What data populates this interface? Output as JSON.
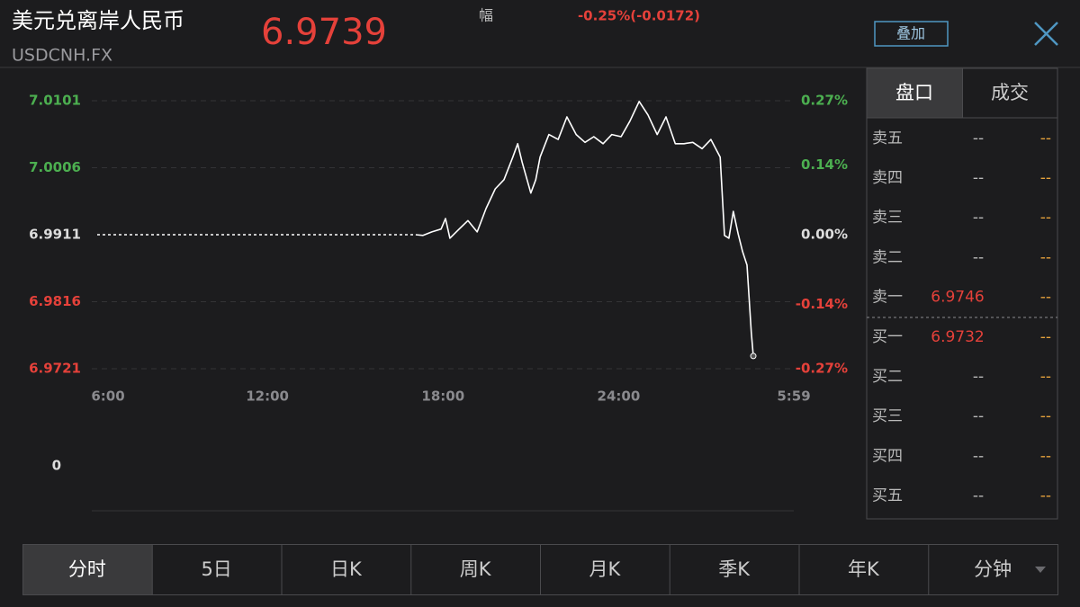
{
  "header": {
    "title": "美元兑离岸人民币",
    "code": "USDCNH.FX",
    "price": "6.9739",
    "change_label": "幅",
    "change": "-0.25%(-0.0172)",
    "overlay_button": "叠加"
  },
  "chart_data": {
    "type": "line",
    "x": [
      664,
      679,
      697,
      716,
      725,
      734,
      753,
      771,
      790,
      808,
      827,
      845,
      863,
      873,
      882,
      900,
      910,
      919,
      937,
      956,
      974,
      993,
      1011,
      1029,
      1048,
      1066,
      1085,
      1103,
      1122,
      1140,
      1159,
      1177,
      1196,
      1214,
      1232,
      1251,
      1269,
      1288,
      1297,
      1306,
      1315,
      1325,
      1334,
      1343,
      1352,
      1356
    ],
    "series": [
      {
        "color": "#ffffff",
        "values": [
          6.9911,
          6.991,
          6.9915,
          6.9919,
          6.9934,
          6.9906,
          6.9919,
          6.9931,
          6.9915,
          6.9948,
          6.9976,
          6.9989,
          7.0021,
          7.004,
          7.0014,
          6.997,
          6.9989,
          7.0021,
          7.0053,
          7.0046,
          7.0078,
          7.0053,
          7.0042,
          7.005,
          7.004,
          7.0053,
          7.005,
          7.0072,
          7.01,
          7.0081,
          7.0053,
          7.0078,
          7.004,
          7.004,
          7.0042,
          7.0033,
          7.0046,
          7.0021,
          6.991,
          6.9906,
          6.9944,
          6.9912,
          6.9887,
          6.9868,
          6.9772,
          6.9739
        ]
      }
    ],
    "xlim": [
      0,
      1439
    ],
    "xticks": [
      {
        "value": 0,
        "label": "6:00"
      },
      {
        "value": 360,
        "label": "12:00"
      },
      {
        "value": 720,
        "label": "18:00"
      },
      {
        "value": 1080,
        "label": "24:00"
      },
      {
        "value": 1439,
        "label": "5:59"
      }
    ],
    "ylim": [
      6.9721,
      7.0101
    ],
    "yticks": [
      6.9721,
      6.9816,
      6.9911,
      7.0006,
      7.0101
    ],
    "y2lim": [
      -0.27,
      0.27
    ],
    "y2ticks": [
      {
        "value": -0.27,
        "label": "-0.27%"
      },
      {
        "value": -0.14,
        "label": "-0.14%"
      },
      {
        "value": 0,
        "label": "0.00%"
      },
      {
        "value": 0.14,
        "label": "0.14%"
      },
      {
        "value": 0.27,
        "label": "0.27%"
      }
    ],
    "prev_close": 6.9911,
    "grid": true
  },
  "volume_panel": {
    "yticks": [
      0
    ]
  },
  "order_book": {
    "tabs": [
      "盘口",
      "成交"
    ],
    "rows": [
      {
        "label": "卖五",
        "price": "--",
        "volume": "--"
      },
      {
        "label": "卖四",
        "price": "--",
        "volume": "--"
      },
      {
        "label": "卖三",
        "price": "--",
        "volume": "--"
      },
      {
        "label": "卖二",
        "price": "--",
        "volume": "--"
      },
      {
        "label": "卖一",
        "price": "6.9746",
        "volume": "--"
      },
      {
        "label": "买一",
        "price": "6.9732",
        "volume": "--"
      },
      {
        "label": "买二",
        "price": "--",
        "volume": "--"
      },
      {
        "label": "买三",
        "price": "--",
        "volume": "--"
      },
      {
        "label": "买四",
        "price": "--",
        "volume": "--"
      },
      {
        "label": "买五",
        "price": "--",
        "volume": "--"
      }
    ]
  },
  "period_tabs": [
    "分时",
    "5日",
    "日K",
    "周K",
    "月K",
    "季K",
    "年K",
    "分钟"
  ]
}
